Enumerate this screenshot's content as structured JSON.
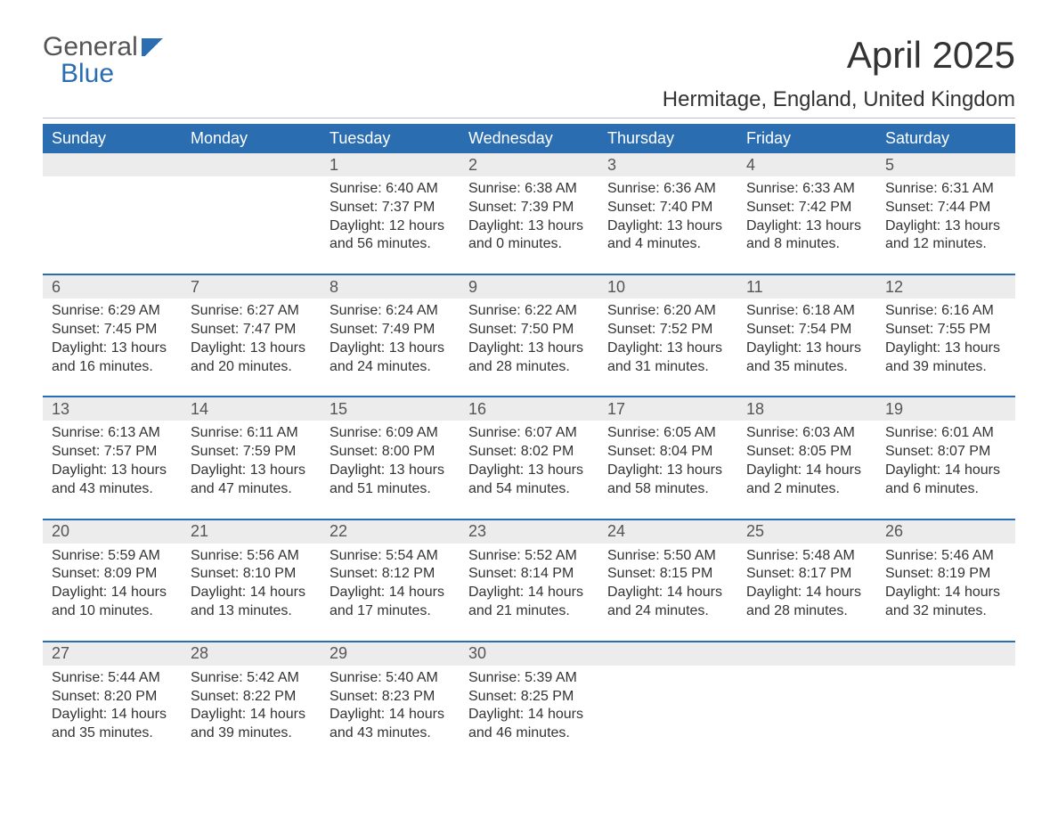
{
  "brand": {
    "line1": "General",
    "line2": "Blue",
    "brand_gray": "#555555",
    "brand_blue": "#2a6db0"
  },
  "title": "April 2025",
  "location": "Hermitage, England, United Kingdom",
  "colors": {
    "header_bg": "#2a6db0",
    "header_text": "#ffffff",
    "daynum_bg": "#ececec",
    "daynum_text": "#555555",
    "body_text": "#333333",
    "rule": "#bfbfbf",
    "page_bg": "#ffffff"
  },
  "typography": {
    "month_title_pt": 42,
    "location_pt": 24,
    "weekday_pt": 18,
    "daynum_pt": 18,
    "detail_pt": 16
  },
  "weekdays": [
    "Sunday",
    "Monday",
    "Tuesday",
    "Wednesday",
    "Thursday",
    "Friday",
    "Saturday"
  ],
  "weeks": [
    [
      {
        "day": "",
        "sunrise": "",
        "sunset": "",
        "daylight": ""
      },
      {
        "day": "",
        "sunrise": "",
        "sunset": "",
        "daylight": ""
      },
      {
        "day": "1",
        "sunrise": "Sunrise: 6:40 AM",
        "sunset": "Sunset: 7:37 PM",
        "daylight": "Daylight: 12 hours and 56 minutes."
      },
      {
        "day": "2",
        "sunrise": "Sunrise: 6:38 AM",
        "sunset": "Sunset: 7:39 PM",
        "daylight": "Daylight: 13 hours and 0 minutes."
      },
      {
        "day": "3",
        "sunrise": "Sunrise: 6:36 AM",
        "sunset": "Sunset: 7:40 PM",
        "daylight": "Daylight: 13 hours and 4 minutes."
      },
      {
        "day": "4",
        "sunrise": "Sunrise: 6:33 AM",
        "sunset": "Sunset: 7:42 PM",
        "daylight": "Daylight: 13 hours and 8 minutes."
      },
      {
        "day": "5",
        "sunrise": "Sunrise: 6:31 AM",
        "sunset": "Sunset: 7:44 PM",
        "daylight": "Daylight: 13 hours and 12 minutes."
      }
    ],
    [
      {
        "day": "6",
        "sunrise": "Sunrise: 6:29 AM",
        "sunset": "Sunset: 7:45 PM",
        "daylight": "Daylight: 13 hours and 16 minutes."
      },
      {
        "day": "7",
        "sunrise": "Sunrise: 6:27 AM",
        "sunset": "Sunset: 7:47 PM",
        "daylight": "Daylight: 13 hours and 20 minutes."
      },
      {
        "day": "8",
        "sunrise": "Sunrise: 6:24 AM",
        "sunset": "Sunset: 7:49 PM",
        "daylight": "Daylight: 13 hours and 24 minutes."
      },
      {
        "day": "9",
        "sunrise": "Sunrise: 6:22 AM",
        "sunset": "Sunset: 7:50 PM",
        "daylight": "Daylight: 13 hours and 28 minutes."
      },
      {
        "day": "10",
        "sunrise": "Sunrise: 6:20 AM",
        "sunset": "Sunset: 7:52 PM",
        "daylight": "Daylight: 13 hours and 31 minutes."
      },
      {
        "day": "11",
        "sunrise": "Sunrise: 6:18 AM",
        "sunset": "Sunset: 7:54 PM",
        "daylight": "Daylight: 13 hours and 35 minutes."
      },
      {
        "day": "12",
        "sunrise": "Sunrise: 6:16 AM",
        "sunset": "Sunset: 7:55 PM",
        "daylight": "Daylight: 13 hours and 39 minutes."
      }
    ],
    [
      {
        "day": "13",
        "sunrise": "Sunrise: 6:13 AM",
        "sunset": "Sunset: 7:57 PM",
        "daylight": "Daylight: 13 hours and 43 minutes."
      },
      {
        "day": "14",
        "sunrise": "Sunrise: 6:11 AM",
        "sunset": "Sunset: 7:59 PM",
        "daylight": "Daylight: 13 hours and 47 minutes."
      },
      {
        "day": "15",
        "sunrise": "Sunrise: 6:09 AM",
        "sunset": "Sunset: 8:00 PM",
        "daylight": "Daylight: 13 hours and 51 minutes."
      },
      {
        "day": "16",
        "sunrise": "Sunrise: 6:07 AM",
        "sunset": "Sunset: 8:02 PM",
        "daylight": "Daylight: 13 hours and 54 minutes."
      },
      {
        "day": "17",
        "sunrise": "Sunrise: 6:05 AM",
        "sunset": "Sunset: 8:04 PM",
        "daylight": "Daylight: 13 hours and 58 minutes."
      },
      {
        "day": "18",
        "sunrise": "Sunrise: 6:03 AM",
        "sunset": "Sunset: 8:05 PM",
        "daylight": "Daylight: 14 hours and 2 minutes."
      },
      {
        "day": "19",
        "sunrise": "Sunrise: 6:01 AM",
        "sunset": "Sunset: 8:07 PM",
        "daylight": "Daylight: 14 hours and 6 minutes."
      }
    ],
    [
      {
        "day": "20",
        "sunrise": "Sunrise: 5:59 AM",
        "sunset": "Sunset: 8:09 PM",
        "daylight": "Daylight: 14 hours and 10 minutes."
      },
      {
        "day": "21",
        "sunrise": "Sunrise: 5:56 AM",
        "sunset": "Sunset: 8:10 PM",
        "daylight": "Daylight: 14 hours and 13 minutes."
      },
      {
        "day": "22",
        "sunrise": "Sunrise: 5:54 AM",
        "sunset": "Sunset: 8:12 PM",
        "daylight": "Daylight: 14 hours and 17 minutes."
      },
      {
        "day": "23",
        "sunrise": "Sunrise: 5:52 AM",
        "sunset": "Sunset: 8:14 PM",
        "daylight": "Daylight: 14 hours and 21 minutes."
      },
      {
        "day": "24",
        "sunrise": "Sunrise: 5:50 AM",
        "sunset": "Sunset: 8:15 PM",
        "daylight": "Daylight: 14 hours and 24 minutes."
      },
      {
        "day": "25",
        "sunrise": "Sunrise: 5:48 AM",
        "sunset": "Sunset: 8:17 PM",
        "daylight": "Daylight: 14 hours and 28 minutes."
      },
      {
        "day": "26",
        "sunrise": "Sunrise: 5:46 AM",
        "sunset": "Sunset: 8:19 PM",
        "daylight": "Daylight: 14 hours and 32 minutes."
      }
    ],
    [
      {
        "day": "27",
        "sunrise": "Sunrise: 5:44 AM",
        "sunset": "Sunset: 8:20 PM",
        "daylight": "Daylight: 14 hours and 35 minutes."
      },
      {
        "day": "28",
        "sunrise": "Sunrise: 5:42 AM",
        "sunset": "Sunset: 8:22 PM",
        "daylight": "Daylight: 14 hours and 39 minutes."
      },
      {
        "day": "29",
        "sunrise": "Sunrise: 5:40 AM",
        "sunset": "Sunset: 8:23 PM",
        "daylight": "Daylight: 14 hours and 43 minutes."
      },
      {
        "day": "30",
        "sunrise": "Sunrise: 5:39 AM",
        "sunset": "Sunset: 8:25 PM",
        "daylight": "Daylight: 14 hours and 46 minutes."
      },
      {
        "day": "",
        "sunrise": "",
        "sunset": "",
        "daylight": ""
      },
      {
        "day": "",
        "sunrise": "",
        "sunset": "",
        "daylight": ""
      },
      {
        "day": "",
        "sunrise": "",
        "sunset": "",
        "daylight": ""
      }
    ]
  ]
}
